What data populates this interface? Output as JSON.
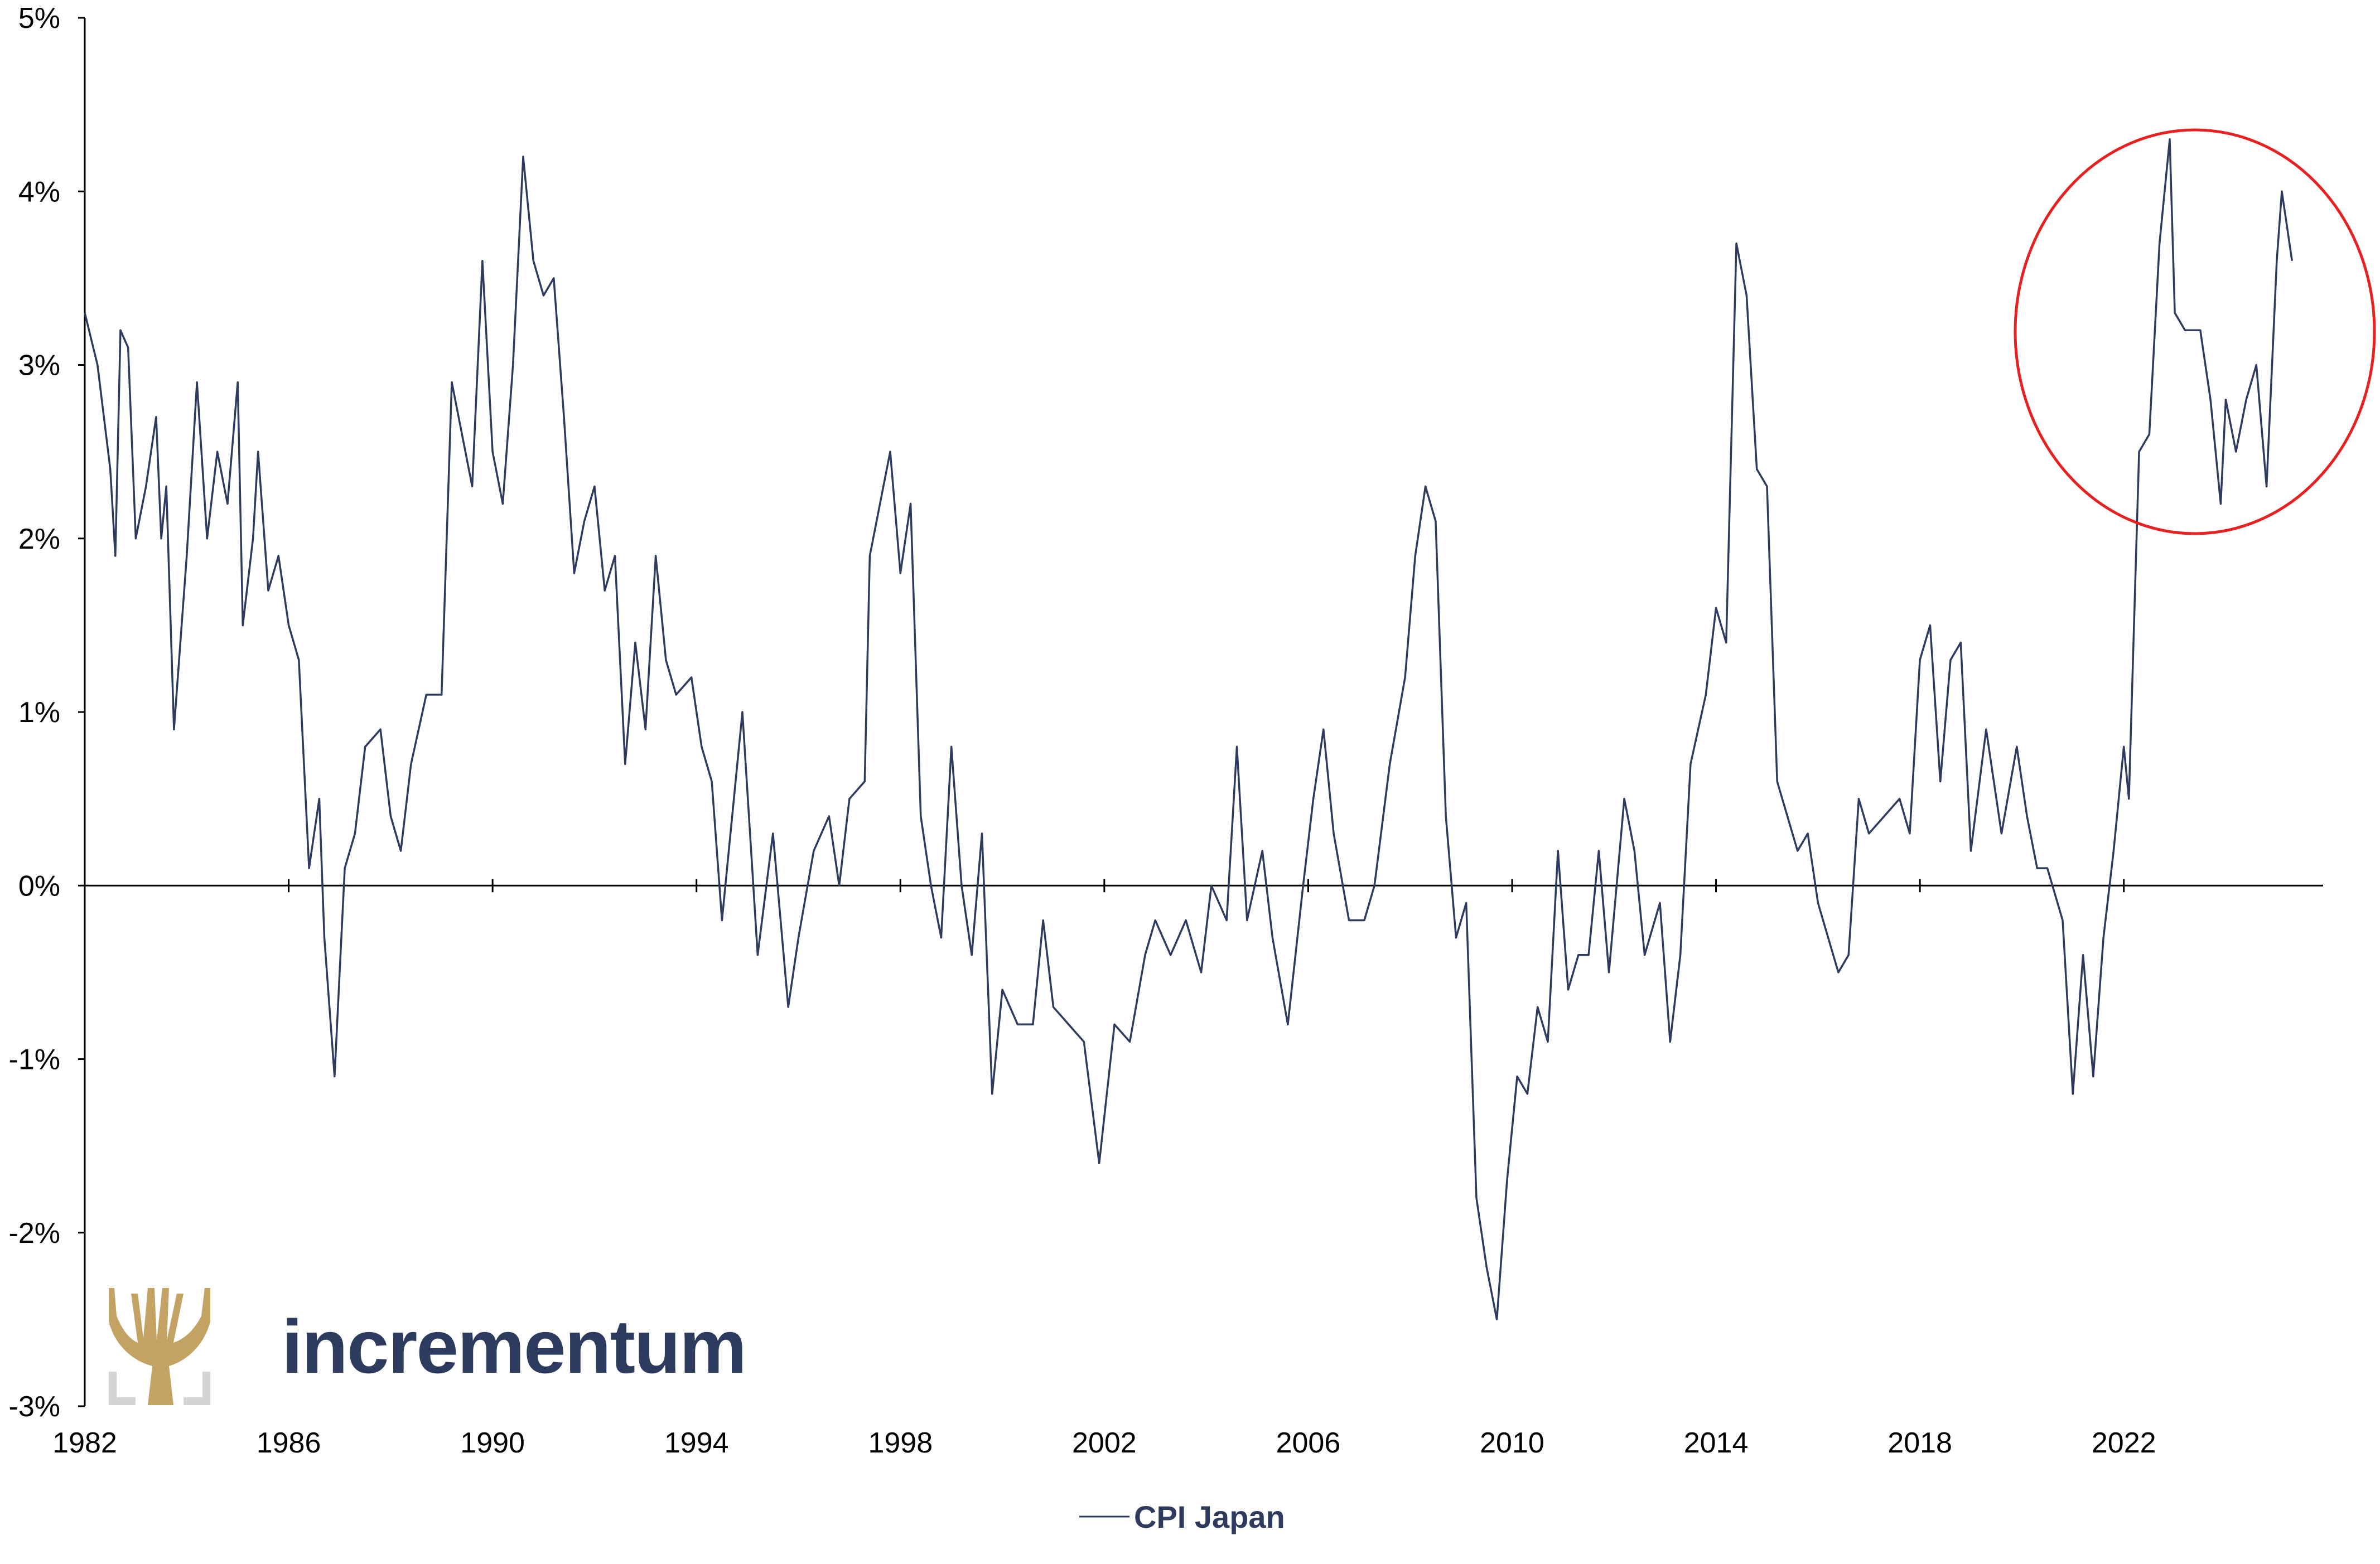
{
  "brand": {
    "name": "incrementum",
    "logo_icon": "tree-logo-icon",
    "logo_color": "#c3a264",
    "text_color": "#2d3b5e"
  },
  "highlight": {
    "shape": "circle-annotation",
    "color": "#e8201f",
    "period": "2022-2025"
  },
  "chart_data": {
    "type": "line",
    "title": "",
    "xlabel": "",
    "ylabel": "",
    "x_ticks": [
      "1982",
      "1986",
      "1990",
      "1994",
      "1998",
      "2002",
      "2006",
      "2010",
      "2014",
      "2018",
      "2022"
    ],
    "y_ticks": [
      "5%",
      "4%",
      "3%",
      "2%",
      "1%",
      "0%",
      "-1%",
      "-2%",
      "-3%"
    ],
    "ylim": [
      -3,
      5
    ],
    "xlim": [
      1982.0,
      2025.8
    ],
    "grid": false,
    "legend_position": "bottom-center",
    "series": [
      {
        "name": "CPI Japan",
        "color": "#2d3b5e",
        "points": [
          [
            1982.0,
            3.3
          ],
          [
            1982.25,
            3.0
          ],
          [
            1982.5,
            2.4
          ],
          [
            1982.6,
            1.9
          ],
          [
            1982.7,
            3.2
          ],
          [
            1982.85,
            3.1
          ],
          [
            1983.0,
            2.0
          ],
          [
            1983.2,
            2.3
          ],
          [
            1983.4,
            2.7
          ],
          [
            1983.5,
            2.0
          ],
          [
            1983.6,
            2.3
          ],
          [
            1983.75,
            0.9
          ],
          [
            1984.0,
            1.9
          ],
          [
            1984.2,
            2.9
          ],
          [
            1984.4,
            2.0
          ],
          [
            1984.6,
            2.5
          ],
          [
            1984.8,
            2.2
          ],
          [
            1985.0,
            2.9
          ],
          [
            1985.1,
            1.5
          ],
          [
            1985.3,
            2.0
          ],
          [
            1985.4,
            2.5
          ],
          [
            1985.6,
            1.7
          ],
          [
            1985.8,
            1.9
          ],
          [
            1986.0,
            1.5
          ],
          [
            1986.2,
            1.3
          ],
          [
            1986.4,
            0.1
          ],
          [
            1986.6,
            0.5
          ],
          [
            1986.7,
            -0.3
          ],
          [
            1986.9,
            -1.1
          ],
          [
            1987.1,
            0.1
          ],
          [
            1987.3,
            0.3
          ],
          [
            1987.5,
            0.8
          ],
          [
            1987.8,
            0.9
          ],
          [
            1988.0,
            0.4
          ],
          [
            1988.2,
            0.2
          ],
          [
            1988.4,
            0.7
          ],
          [
            1988.7,
            1.1
          ],
          [
            1989.0,
            1.1
          ],
          [
            1989.2,
            2.9
          ],
          [
            1989.4,
            2.6
          ],
          [
            1989.6,
            2.3
          ],
          [
            1989.8,
            3.6
          ],
          [
            1990.0,
            2.5
          ],
          [
            1990.2,
            2.2
          ],
          [
            1990.4,
            3.0
          ],
          [
            1990.6,
            4.2
          ],
          [
            1990.8,
            3.6
          ],
          [
            1991.0,
            3.4
          ],
          [
            1991.2,
            3.5
          ],
          [
            1991.4,
            2.7
          ],
          [
            1991.6,
            1.8
          ],
          [
            1991.8,
            2.1
          ],
          [
            1992.0,
            2.3
          ],
          [
            1992.2,
            1.7
          ],
          [
            1992.4,
            1.9
          ],
          [
            1992.6,
            0.7
          ],
          [
            1992.8,
            1.4
          ],
          [
            1993.0,
            0.9
          ],
          [
            1993.2,
            1.9
          ],
          [
            1993.4,
            1.3
          ],
          [
            1993.6,
            1.1
          ],
          [
            1993.9,
            1.2
          ],
          [
            1994.1,
            0.8
          ],
          [
            1994.3,
            0.6
          ],
          [
            1994.5,
            -0.2
          ],
          [
            1994.7,
            0.4
          ],
          [
            1994.9,
            1.0
          ],
          [
            1995.2,
            -0.4
          ],
          [
            1995.5,
            0.3
          ],
          [
            1995.8,
            -0.7
          ],
          [
            1996.0,
            -0.3
          ],
          [
            1996.3,
            0.2
          ],
          [
            1996.6,
            0.4
          ],
          [
            1996.8,
            0.0
          ],
          [
            1997.0,
            0.5
          ],
          [
            1997.3,
            0.6
          ],
          [
            1997.4,
            1.9
          ],
          [
            1997.6,
            2.2
          ],
          [
            1997.8,
            2.5
          ],
          [
            1998.0,
            1.8
          ],
          [
            1998.2,
            2.2
          ],
          [
            1998.4,
            0.4
          ],
          [
            1998.6,
            0.0
          ],
          [
            1998.8,
            -0.3
          ],
          [
            1999.0,
            0.8
          ],
          [
            1999.2,
            0.0
          ],
          [
            1999.4,
            -0.4
          ],
          [
            1999.6,
            0.3
          ],
          [
            1999.8,
            -1.2
          ],
          [
            2000.0,
            -0.6
          ],
          [
            2000.3,
            -0.8
          ],
          [
            2000.6,
            -0.8
          ],
          [
            2000.8,
            -0.2
          ],
          [
            2001.0,
            -0.7
          ],
          [
            2001.3,
            -0.8
          ],
          [
            2001.6,
            -0.9
          ],
          [
            2001.9,
            -1.6
          ],
          [
            2002.2,
            -0.8
          ],
          [
            2002.5,
            -0.9
          ],
          [
            2002.8,
            -0.4
          ],
          [
            2003.0,
            -0.2
          ],
          [
            2003.3,
            -0.4
          ],
          [
            2003.6,
            -0.2
          ],
          [
            2003.9,
            -0.5
          ],
          [
            2004.1,
            0.0
          ],
          [
            2004.4,
            -0.2
          ],
          [
            2004.6,
            0.8
          ],
          [
            2004.8,
            -0.2
          ],
          [
            2005.1,
            0.2
          ],
          [
            2005.3,
            -0.3
          ],
          [
            2005.6,
            -0.8
          ],
          [
            2005.9,
            0.0
          ],
          [
            2006.1,
            0.5
          ],
          [
            2006.3,
            0.9
          ],
          [
            2006.5,
            0.3
          ],
          [
            2006.8,
            -0.2
          ],
          [
            2007.1,
            -0.2
          ],
          [
            2007.3,
            0.0
          ],
          [
            2007.6,
            0.7
          ],
          [
            2007.9,
            1.2
          ],
          [
            2008.1,
            1.9
          ],
          [
            2008.3,
            2.3
          ],
          [
            2008.5,
            2.1
          ],
          [
            2008.7,
            0.4
          ],
          [
            2008.9,
            -0.3
          ],
          [
            2009.1,
            -0.1
          ],
          [
            2009.3,
            -1.8
          ],
          [
            2009.5,
            -2.2
          ],
          [
            2009.7,
            -2.5
          ],
          [
            2009.9,
            -1.7
          ],
          [
            2010.1,
            -1.1
          ],
          [
            2010.3,
            -1.2
          ],
          [
            2010.5,
            -0.7
          ],
          [
            2010.7,
            -0.9
          ],
          [
            2010.9,
            0.2
          ],
          [
            2011.1,
            -0.6
          ],
          [
            2011.3,
            -0.4
          ],
          [
            2011.5,
            -0.4
          ],
          [
            2011.7,
            0.2
          ],
          [
            2011.9,
            -0.5
          ],
          [
            2012.2,
            0.5
          ],
          [
            2012.4,
            0.2
          ],
          [
            2012.6,
            -0.4
          ],
          [
            2012.9,
            -0.1
          ],
          [
            2013.1,
            -0.9
          ],
          [
            2013.3,
            -0.4
          ],
          [
            2013.5,
            0.7
          ],
          [
            2013.8,
            1.1
          ],
          [
            2014.0,
            1.6
          ],
          [
            2014.2,
            1.4
          ],
          [
            2014.4,
            3.7
          ],
          [
            2014.6,
            3.4
          ],
          [
            2014.8,
            2.4
          ],
          [
            2015.0,
            2.3
          ],
          [
            2015.2,
            0.6
          ],
          [
            2015.4,
            0.4
          ],
          [
            2015.6,
            0.2
          ],
          [
            2015.8,
            0.3
          ],
          [
            2016.0,
            -0.1
          ],
          [
            2016.2,
            -0.3
          ],
          [
            2016.4,
            -0.5
          ],
          [
            2016.6,
            -0.4
          ],
          [
            2016.8,
            0.5
          ],
          [
            2017.0,
            0.3
          ],
          [
            2017.3,
            0.4
          ],
          [
            2017.6,
            0.5
          ],
          [
            2017.8,
            0.3
          ],
          [
            2018.0,
            1.3
          ],
          [
            2018.2,
            1.5
          ],
          [
            2018.4,
            0.6
          ],
          [
            2018.6,
            1.3
          ],
          [
            2018.8,
            1.4
          ],
          [
            2019.0,
            0.2
          ],
          [
            2019.3,
            0.9
          ],
          [
            2019.6,
            0.3
          ],
          [
            2019.9,
            0.8
          ],
          [
            2020.1,
            0.4
          ],
          [
            2020.3,
            0.1
          ],
          [
            2020.5,
            0.1
          ],
          [
            2020.8,
            -0.2
          ],
          [
            2021.0,
            -1.2
          ],
          [
            2021.2,
            -0.4
          ],
          [
            2021.4,
            -1.1
          ],
          [
            2021.6,
            -0.3
          ],
          [
            2021.8,
            0.2
          ],
          [
            2022.0,
            0.8
          ],
          [
            2022.1,
            0.5
          ],
          [
            2022.3,
            2.5
          ],
          [
            2022.5,
            2.6
          ],
          [
            2022.7,
            3.7
          ],
          [
            2022.9,
            4.3
          ],
          [
            2023.0,
            3.3
          ],
          [
            2023.2,
            3.2
          ],
          [
            2023.5,
            3.2
          ],
          [
            2023.7,
            2.8
          ],
          [
            2023.9,
            2.2
          ],
          [
            2024.0,
            2.8
          ],
          [
            2024.2,
            2.5
          ],
          [
            2024.4,
            2.8
          ],
          [
            2024.6,
            3.0
          ],
          [
            2024.8,
            2.3
          ],
          [
            2025.0,
            3.6
          ],
          [
            2025.1,
            4.0
          ],
          [
            2025.3,
            3.6
          ]
        ]
      }
    ]
  }
}
